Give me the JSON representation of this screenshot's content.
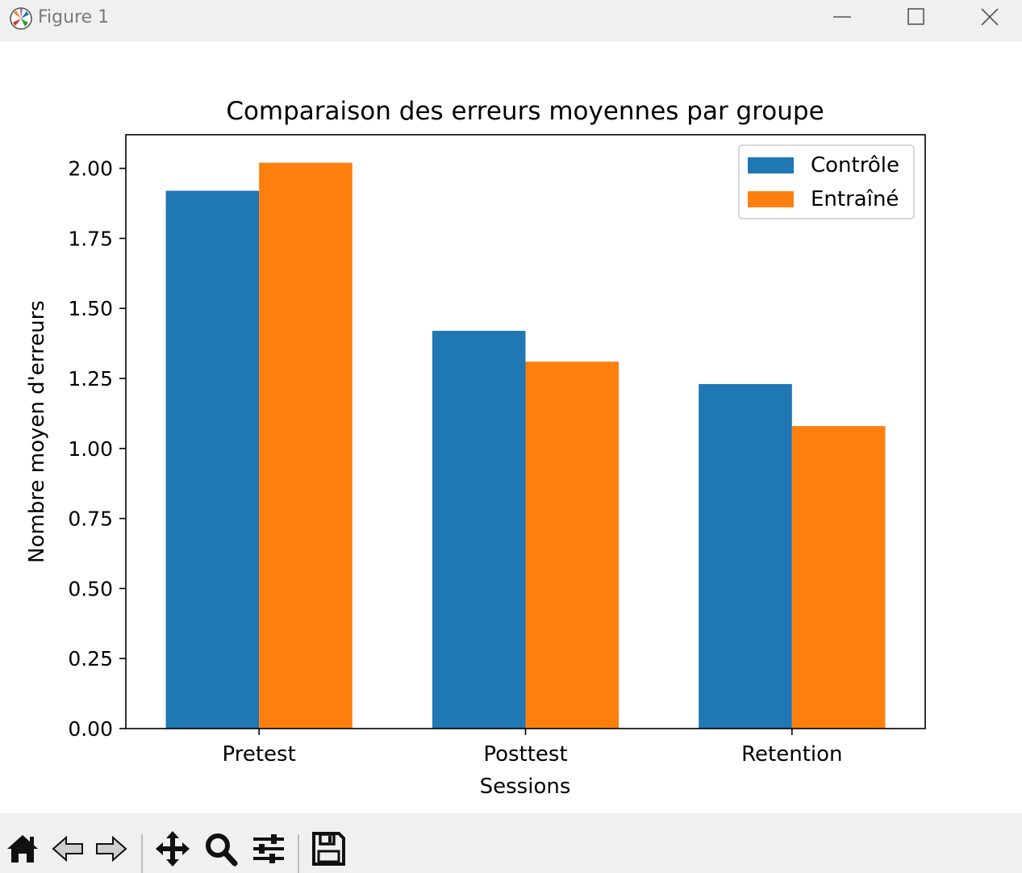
{
  "window": {
    "title": "Figure 1"
  },
  "chart_data": {
    "type": "bar",
    "title": "Comparaison des erreurs moyennes par groupe",
    "xlabel": "Sessions",
    "ylabel": "Nombre moyen d'erreurs",
    "categories": [
      "Pretest",
      "Posttest",
      "Retention"
    ],
    "series": [
      {
        "name": "Contrôle",
        "values": [
          1.92,
          1.42,
          1.23
        ],
        "color": "#1f77b4"
      },
      {
        "name": "Entraîné",
        "values": [
          2.02,
          1.31,
          1.08
        ],
        "color": "#ff7f0e"
      }
    ],
    "ylim": [
      0,
      2.12
    ],
    "yticks": [
      "0.00",
      "0.25",
      "0.50",
      "0.75",
      "1.00",
      "1.25",
      "1.50",
      "1.75",
      "2.00"
    ],
    "legend_position": "top-right",
    "grid": false
  },
  "toolbar": {
    "icons": [
      "home-icon",
      "back-arrow-icon",
      "forward-arrow-icon",
      "pan-icon",
      "zoom-icon",
      "configure-subplots-icon",
      "save-icon"
    ]
  }
}
